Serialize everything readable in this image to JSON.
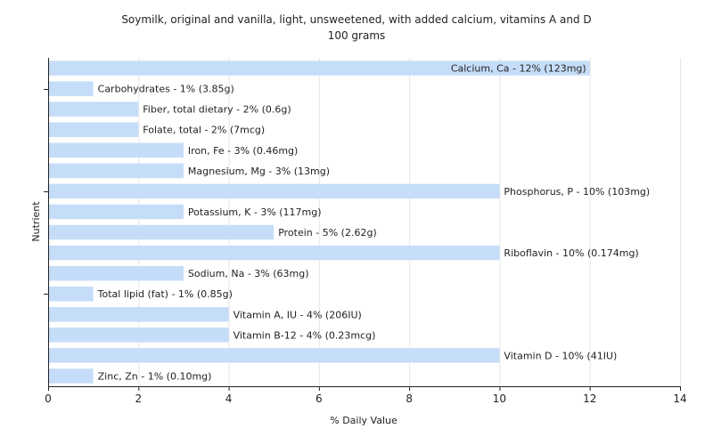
{
  "chart_data": {
    "type": "bar",
    "orientation": "horizontal",
    "title": "Soymilk, original and vanilla, light, unsweetened, with added calcium, vitamins A and D",
    "subtitle": "100 grams",
    "xlabel": "% Daily Value",
    "ylabel": "Nutrient",
    "xlim": [
      0,
      14
    ],
    "xticks": [
      0,
      2,
      4,
      6,
      8,
      10,
      12,
      14
    ],
    "grid": true,
    "bar_color": "#c6ddf9",
    "categories": [
      "Calcium, Ca",
      "Carbohydrates",
      "Fiber, total dietary",
      "Folate, total",
      "Iron, Fe",
      "Magnesium, Mg",
      "Phosphorus, P",
      "Potassium, K",
      "Protein",
      "Riboflavin",
      "Sodium, Na",
      "Total lipid (fat)",
      "Vitamin A, IU",
      "Vitamin B-12",
      "Vitamin D",
      "Zinc, Zn"
    ],
    "values": [
      12,
      1,
      2,
      2,
      3,
      3,
      10,
      3,
      5,
      10,
      3,
      1,
      4,
      4,
      10,
      1
    ],
    "labels": [
      "Calcium, Ca - 12% (123mg)",
      "Carbohydrates - 1% (3.85g)",
      "Fiber, total dietary - 2% (0.6g)",
      "Folate, total - 2% (7mcg)",
      "Iron, Fe - 3% (0.46mg)",
      "Magnesium, Mg - 3% (13mg)",
      "Phosphorus, P - 10% (103mg)",
      "Potassium, K - 3% (117mg)",
      "Protein - 5% (2.62g)",
      "Riboflavin - 10% (0.174mg)",
      "Sodium, Na - 3% (63mg)",
      "Total lipid (fat) - 1% (0.85g)",
      "Vitamin A, IU - 4% (206IU)",
      "Vitamin B-12 - 4% (0.23mcg)",
      "Vitamin D - 10% (41IU)",
      "Zinc, Zn - 1% (0.10mg)"
    ],
    "label_inside": [
      true,
      false,
      false,
      false,
      false,
      false,
      false,
      false,
      false,
      false,
      false,
      false,
      false,
      false,
      false,
      false
    ]
  }
}
